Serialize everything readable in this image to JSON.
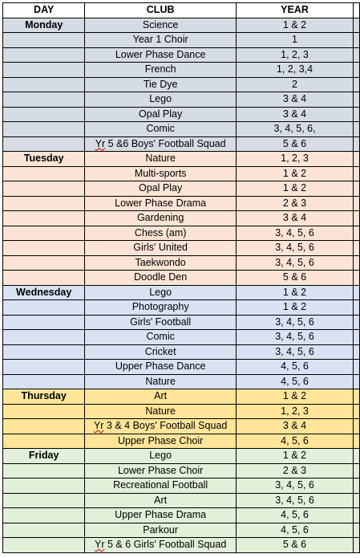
{
  "headers": {
    "day": "DAY",
    "club": "CLUB",
    "year": "YEAR"
  },
  "day_colors": {
    "Monday": "#d6dce4",
    "Tuesday": "#fbe4d5",
    "Wednesday": "#d9e2f3",
    "Thursday": "#ffe599",
    "Friday": "#e2efd9"
  },
  "rows": [
    {
      "day": "Monday",
      "club": "Science",
      "year": "1 & 2"
    },
    {
      "day": "",
      "club": "Year 1 Choir",
      "year": "1"
    },
    {
      "day": "",
      "club": "Lower Phase Dance",
      "year": "1, 2, 3"
    },
    {
      "day": "",
      "club": "French",
      "year": "1, 2, 3,4"
    },
    {
      "day": "",
      "club": "Tie Dye",
      "year": "2"
    },
    {
      "day": "",
      "club": "Lego",
      "year": "3 & 4"
    },
    {
      "day": "",
      "club": "Opal Play",
      "year": "3 & 4"
    },
    {
      "day": "",
      "club": "Comic",
      "year": "3, 4, 5, 6,"
    },
    {
      "day": "",
      "club": "Yr 5 &6 Boys' Football Squad",
      "year": "5 & 6",
      "squiggle": "Yr"
    },
    {
      "day": "Tuesday",
      "club": "Nature",
      "year": "1, 2, 3"
    },
    {
      "day": "",
      "club": "Multi-sports",
      "year": "1 & 2"
    },
    {
      "day": "",
      "club": "Opal Play",
      "year": "1 & 2"
    },
    {
      "day": "",
      "club": "Lower Phase Drama",
      "year": "2 & 3"
    },
    {
      "day": "",
      "club": "Gardening",
      "year": "3 & 4"
    },
    {
      "day": "",
      "club": "Chess (am)",
      "year": "3, 4, 5, 6"
    },
    {
      "day": "",
      "club": "Girls' United",
      "year": "3, 4, 5, 6"
    },
    {
      "day": "",
      "club": "Taekwondo",
      "year": "3, 4, 5, 6"
    },
    {
      "day": "",
      "club": "Doodle Den",
      "year": "5 & 6"
    },
    {
      "day": "Wednesday",
      "club": "Lego",
      "year": "1 & 2"
    },
    {
      "day": "",
      "club": "Photography",
      "year": "1 & 2"
    },
    {
      "day": "",
      "club": "Girls' Football",
      "year": "3, 4, 5, 6"
    },
    {
      "day": "",
      "club": "Comic",
      "year": "3, 4, 5, 6"
    },
    {
      "day": "",
      "club": "Cricket",
      "year": "3, 4, 5, 6"
    },
    {
      "day": "",
      "club": "Upper Phase Dance",
      "year": "4, 5, 6"
    },
    {
      "day": "",
      "club": "Nature",
      "year": "4, 5, 6"
    },
    {
      "day": "Thursday",
      "club": "Art",
      "year": "1 & 2"
    },
    {
      "day": "",
      "club": "Nature",
      "year": "1, 2, 3"
    },
    {
      "day": "",
      "club": "Yr 3 & 4 Boys' Football Squad",
      "year": "3 & 4",
      "squiggle": "Yr"
    },
    {
      "day": "",
      "club": "Upper Phase Choir",
      "year": "4, 5, 6"
    },
    {
      "day": "Friday",
      "club": "Lego",
      "year": "1 & 2"
    },
    {
      "day": "",
      "club": "Lower Phase Choir",
      "year": "2 & 3"
    },
    {
      "day": "",
      "club": "Recreational Football",
      "year": "3, 4, 5, 6"
    },
    {
      "day": "",
      "club": "Art",
      "year": "3, 4, 5, 6"
    },
    {
      "day": "",
      "club": "Upper Phase Drama",
      "year": "4, 5, 6"
    },
    {
      "day": "",
      "club": "Parkour",
      "year": "4, 5, 6"
    },
    {
      "day": "",
      "club": "Yr 5 & 6 Girls' Football Squad",
      "year": "5 & 6",
      "squiggle": "Yr"
    }
  ]
}
